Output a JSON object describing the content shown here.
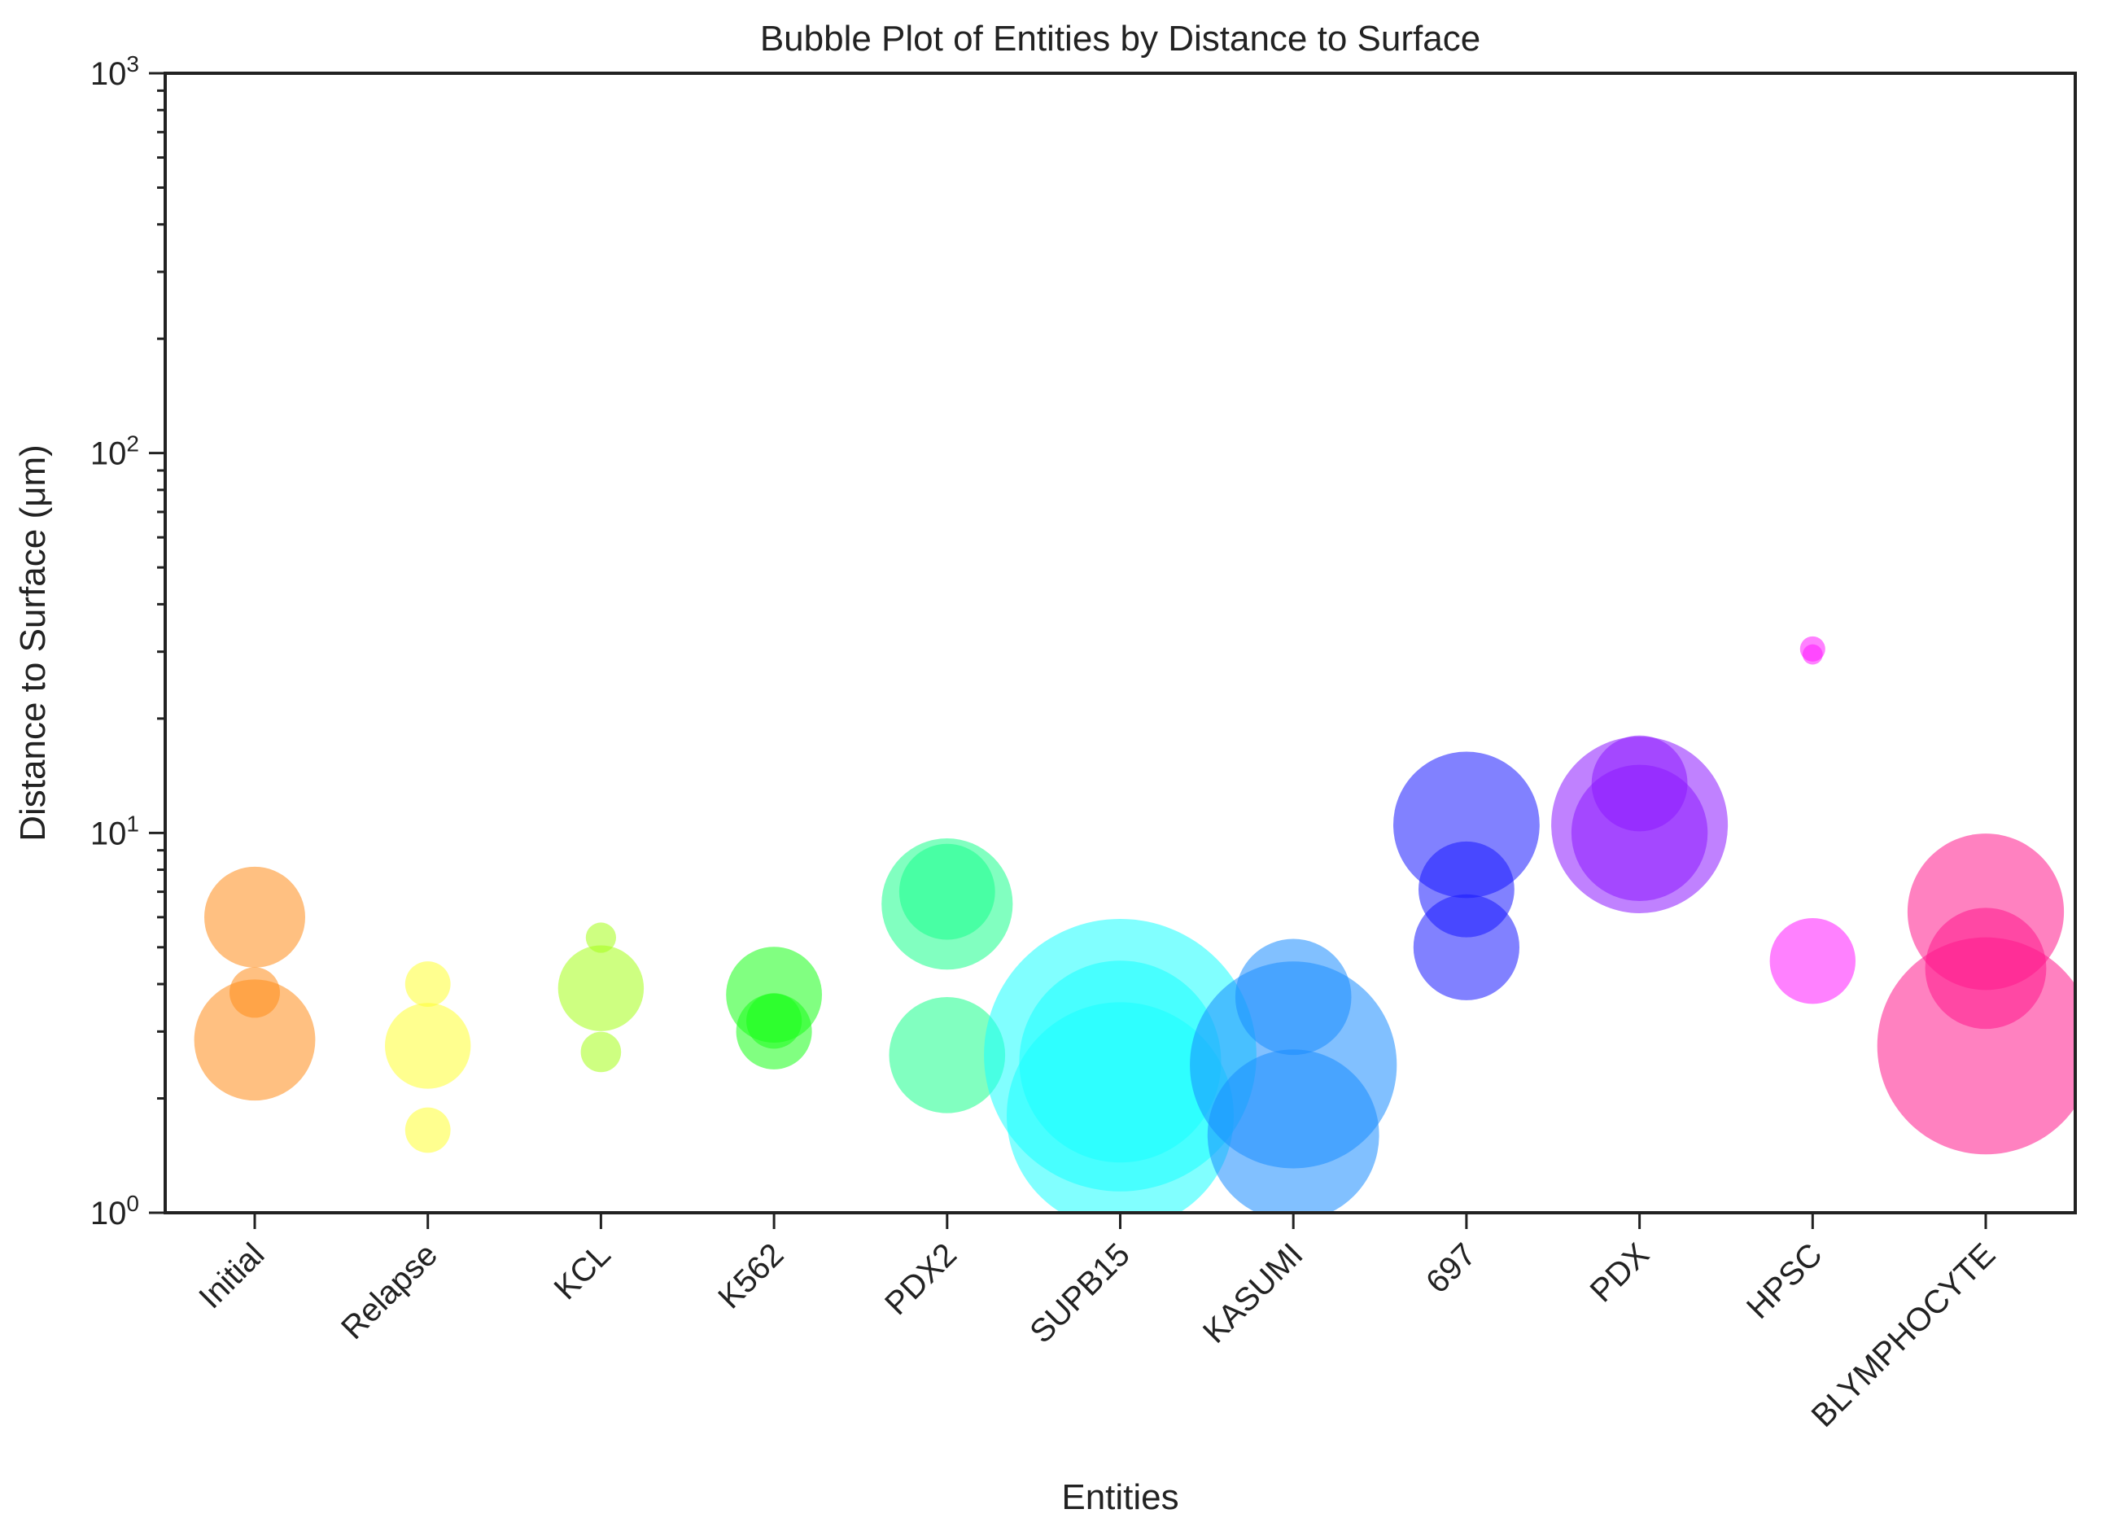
{
  "chart_data": {
    "type": "scatter",
    "title": "Bubble Plot of Entities by Distance to Surface",
    "xlabel": "Entities",
    "ylabel": "Distance to Surface (μm)",
    "yscale": "log",
    "ylim": [
      1,
      1000
    ],
    "y_ticks": [
      {
        "value": 1,
        "base": "10",
        "exp": "0"
      },
      {
        "value": 10,
        "base": "10",
        "exp": "1"
      },
      {
        "value": 100,
        "base": "10",
        "exp": "2"
      },
      {
        "value": 1000,
        "base": "10",
        "exp": "3"
      }
    ],
    "grid": false,
    "legend": "none",
    "categories": [
      "Initial",
      "Relapse",
      "KCL",
      "K562",
      "PDX2",
      "SUPB15",
      "KASUMI",
      "697",
      "PDX",
      "HPSC",
      "BLYMPHOCYTE"
    ],
    "series": [
      {
        "category": "Initial",
        "color": "#ff8c1a",
        "points": [
          {
            "y": 6.0,
            "size": 1.0
          },
          {
            "y": 3.8,
            "size": 0.5
          },
          {
            "y": 2.85,
            "size": 1.2
          }
        ]
      },
      {
        "category": "Relapse",
        "color": "#ffff33",
        "points": [
          {
            "y": 4.0,
            "size": 0.45
          },
          {
            "y": 2.75,
            "size": 0.85
          },
          {
            "y": 1.65,
            "size": 0.45
          }
        ]
      },
      {
        "category": "KCL",
        "color": "#a6ff1a",
        "points": [
          {
            "y": 5.3,
            "size": 0.3
          },
          {
            "y": 3.9,
            "size": 0.85
          },
          {
            "y": 2.65,
            "size": 0.4
          }
        ]
      },
      {
        "category": "K562",
        "color": "#1aff1a",
        "points": [
          {
            "y": 3.75,
            "size": 0.95
          },
          {
            "y": 3.2,
            "size": 0.55
          },
          {
            "y": 3.0,
            "size": 0.75
          }
        ]
      },
      {
        "category": "PDX2",
        "color": "#1aff8c",
        "points": [
          {
            "y": 6.5,
            "size": 1.3
          },
          {
            "y": 7.0,
            "size": 0.95
          },
          {
            "y": 2.6,
            "size": 1.15
          }
        ]
      },
      {
        "category": "SUPB15",
        "color": "#1affff",
        "points": [
          {
            "y": 2.5,
            "size": 2.0
          },
          {
            "y": 2.6,
            "size": 2.7
          },
          {
            "y": 1.8,
            "size": 2.25
          }
        ]
      },
      {
        "category": "KASUMI",
        "color": "#1a8cff",
        "points": [
          {
            "y": 3.7,
            "size": 1.15
          },
          {
            "y": 2.45,
            "size": 2.05
          },
          {
            "y": 1.6,
            "size": 1.7
          }
        ]
      },
      {
        "category": "697",
        "color": "#1a1aff",
        "points": [
          {
            "y": 10.5,
            "size": 1.45
          },
          {
            "y": 7.1,
            "size": 0.95
          },
          {
            "y": 5.0,
            "size": 1.05
          }
        ]
      },
      {
        "category": "PDX",
        "color": "#8c1aff",
        "points": [
          {
            "y": 13.5,
            "size": 0.95
          },
          {
            "y": 10.5,
            "size": 1.75
          },
          {
            "y": 10.0,
            "size": 1.35
          }
        ]
      },
      {
        "category": "HPSC",
        "color": "#ff1aff",
        "points": [
          {
            "y": 30.5,
            "size": 0.25
          },
          {
            "y": 29.5,
            "size": 0.2
          },
          {
            "y": 4.6,
            "size": 0.85
          }
        ]
      },
      {
        "category": "BLYMPHOCYTE",
        "color": "#ff1a8c",
        "points": [
          {
            "y": 6.2,
            "size": 1.55
          },
          {
            "y": 4.4,
            "size": 1.2
          },
          {
            "y": 2.75,
            "size": 2.15
          }
        ]
      }
    ]
  }
}
